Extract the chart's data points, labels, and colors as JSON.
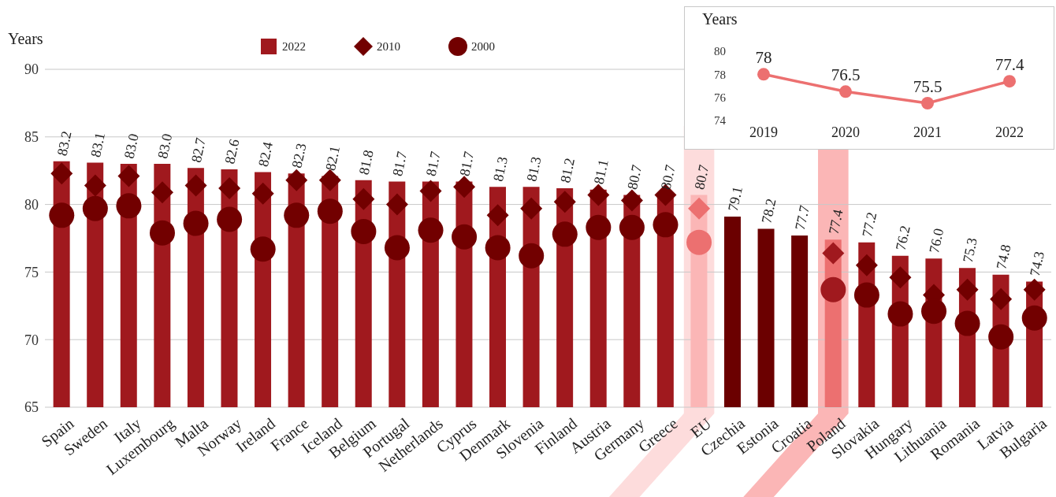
{
  "chart_data": [
    {
      "type": "bar",
      "ylabel": "Years",
      "categories": [
        "Spain",
        "Sweden",
        "Italy",
        "Luxembourg",
        "Malta",
        "Norway",
        "Ireland",
        "France",
        "Iceland",
        "Belgium",
        "Portugal",
        "Netherlands",
        "Cyprus",
        "Denmark",
        "Slovenia",
        "Finland",
        "Austria",
        "Germany",
        "Greece",
        "EU",
        "Czechia",
        "Estonia",
        "Croatia",
        "Poland",
        "Slovakia",
        "Hungary",
        "Lithuania",
        "Romania",
        "Latvia",
        "Bulgaria"
      ],
      "series": [
        {
          "name": "2022",
          "type": "bar",
          "color": "#a0191e",
          "values": [
            83.2,
            83.1,
            83.0,
            83.0,
            82.7,
            82.6,
            82.4,
            82.3,
            82.1,
            81.8,
            81.7,
            81.7,
            81.7,
            81.3,
            81.3,
            81.2,
            81.1,
            80.7,
            80.7,
            80.7,
            79.1,
            78.2,
            77.7,
            77.4,
            77.2,
            76.2,
            76.0,
            75.3,
            74.8,
            74.3
          ],
          "value_labels": [
            "83.2",
            "83.1",
            "83.0",
            "83.0",
            "82.7",
            "82.6",
            "82.4",
            "82.3",
            "82.1",
            "81.8",
            "81.7",
            "81.7",
            "81.7",
            "81.3",
            "81.3",
            "81.2",
            "81.1",
            "80.7",
            "80.7",
            "80.7",
            "79.1",
            "78.2",
            "77.7",
            "77.4",
            "77.2",
            "76.2",
            "76.0",
            "75.3",
            "74.8",
            "74.3"
          ],
          "colors": [
            "#a0191e",
            "#a0191e",
            "#a0191e",
            "#a0191e",
            "#a0191e",
            "#a0191e",
            "#a0191e",
            "#a0191e",
            "#a0191e",
            "#a0191e",
            "#a0191e",
            "#a0191e",
            "#a0191e",
            "#a0191e",
            "#a0191e",
            "#a0191e",
            "#a0191e",
            "#a0191e",
            "#a0191e",
            "#fbb6b6",
            "#6b0000",
            "#6b0000",
            "#6b0000",
            "#ec7070",
            "#a0191e",
            "#a0191e",
            "#a0191e",
            "#a0191e",
            "#a0191e",
            "#a0191e"
          ]
        },
        {
          "name": "2010",
          "type": "scatter",
          "marker": "diamond",
          "color": "#720000",
          "values": [
            82.3,
            81.4,
            82.1,
            80.9,
            81.4,
            81.2,
            80.8,
            81.8,
            81.8,
            80.4,
            80.0,
            81.0,
            81.3,
            79.2,
            79.7,
            80.2,
            80.7,
            80.3,
            80.7,
            79.7,
            null,
            null,
            null,
            76.4,
            75.5,
            74.6,
            73.3,
            73.7,
            73.0,
            73.7
          ],
          "colors": [
            "#720000",
            "#720000",
            "#720000",
            "#720000",
            "#720000",
            "#720000",
            "#720000",
            "#720000",
            "#720000",
            "#720000",
            "#720000",
            "#720000",
            "#720000",
            "#720000",
            "#720000",
            "#720000",
            "#720000",
            "#720000",
            "#720000",
            "#ec7070",
            null,
            null,
            null,
            "#a0191e",
            "#720000",
            "#720000",
            "#720000",
            "#720000",
            "#720000",
            "#720000"
          ]
        },
        {
          "name": "2000",
          "type": "scatter",
          "marker": "circle",
          "color": "#720000",
          "values": [
            79.2,
            79.7,
            79.9,
            77.9,
            78.6,
            78.9,
            76.7,
            79.2,
            79.5,
            78.0,
            76.8,
            78.1,
            77.6,
            76.8,
            76.2,
            77.8,
            78.3,
            78.3,
            78.5,
            77.2,
            null,
            null,
            null,
            73.7,
            73.3,
            71.9,
            72.1,
            71.2,
            70.2,
            71.6
          ],
          "colors": [
            "#720000",
            "#720000",
            "#720000",
            "#720000",
            "#720000",
            "#720000",
            "#720000",
            "#720000",
            "#720000",
            "#720000",
            "#720000",
            "#720000",
            "#720000",
            "#720000",
            "#720000",
            "#720000",
            "#720000",
            "#720000",
            "#720000",
            "#ec7070",
            null,
            null,
            null,
            "#a0191e",
            "#720000",
            "#720000",
            "#720000",
            "#720000",
            "#720000",
            "#720000"
          ]
        }
      ],
      "ylim": [
        65,
        90
      ],
      "yticks": [
        65,
        70,
        75,
        80,
        85,
        90
      ],
      "grid": "y",
      "legend": "top"
    },
    {
      "type": "line",
      "ylabel": "Years",
      "categories": [
        "2019",
        "2020",
        "2021",
        "2022"
      ],
      "values": [
        78,
        76.5,
        75.5,
        77.4
      ],
      "color": "#ec7070",
      "marker": "circle",
      "data_labels": true,
      "ylim": [
        74,
        80
      ],
      "yticks": [
        74,
        76,
        78,
        80
      ]
    }
  ]
}
